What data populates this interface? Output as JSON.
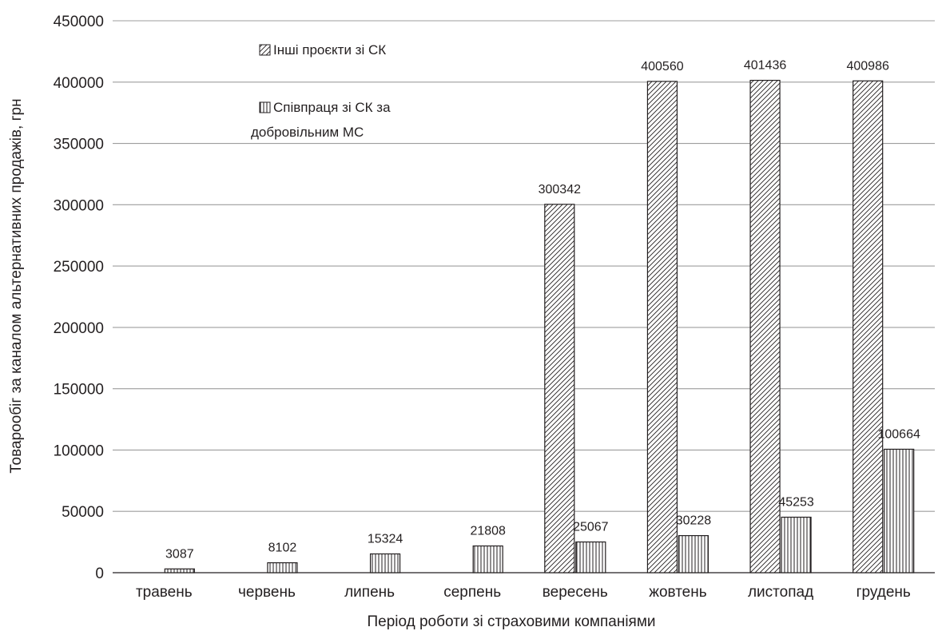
{
  "chart_data": {
    "type": "bar",
    "title": "",
    "xlabel": "Період роботи зі страховими компаніями",
    "ylabel": "Товарообіг за каналом альтернативних продажів, грн",
    "ylim": [
      0,
      450000
    ],
    "yticks": [
      0,
      50000,
      100000,
      150000,
      200000,
      250000,
      300000,
      350000,
      400000,
      450000
    ],
    "grid": true,
    "legend_position": "top-left",
    "categories": [
      "травень",
      "червень",
      "липень",
      "серпень",
      "вересень",
      "жовтень",
      "листопад",
      "грудень"
    ],
    "series": [
      {
        "name": "Інші проєкти зі СК",
        "pattern": "diagonal-hatch",
        "values": [
          null,
          null,
          null,
          null,
          300342,
          400560,
          401436,
          400986
        ]
      },
      {
        "name": "Співпраця зі СК за добровільним МС",
        "legend_lines": [
          "Співпраця зі СК за",
          "добровільним МС"
        ],
        "pattern": "vertical-hatch",
        "values": [
          3087,
          8102,
          15324,
          21808,
          25067,
          30228,
          45253,
          100664
        ]
      }
    ],
    "colors": {
      "ink": "#231f20",
      "grid": "#9d9d9d",
      "background": "#ffffff"
    }
  }
}
